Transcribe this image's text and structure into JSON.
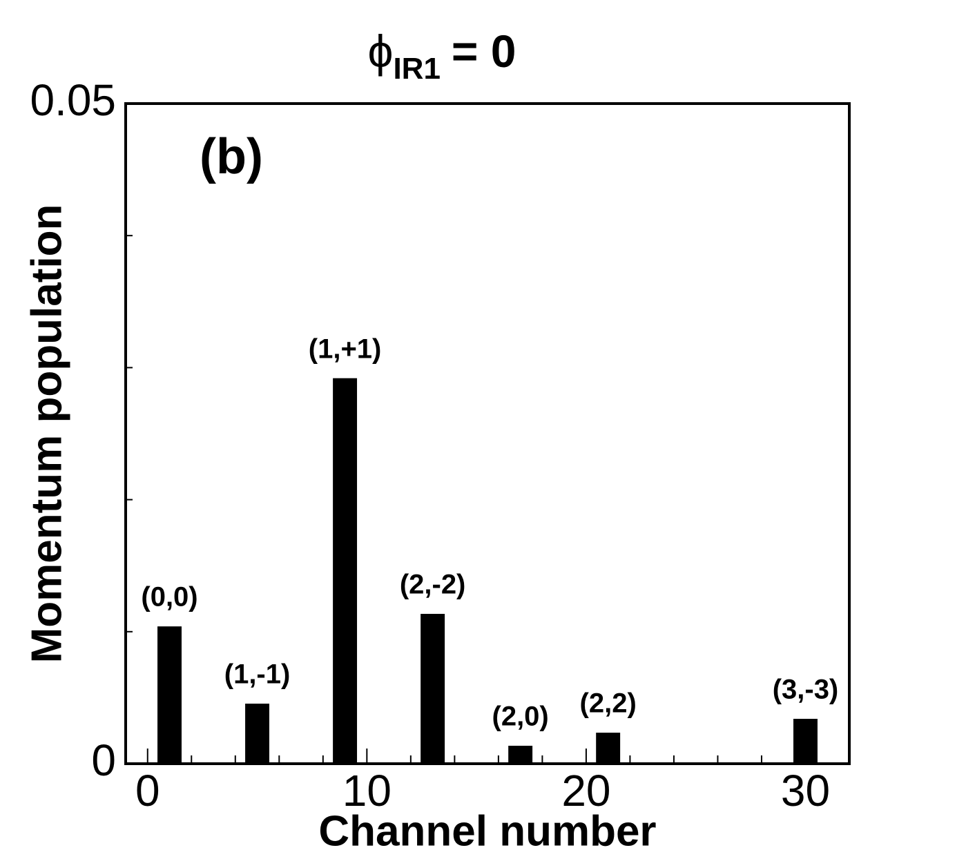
{
  "chart_data": {
    "type": "bar",
    "title": {
      "symbol": "ϕ",
      "subscript": "IR1",
      "text": "= 0"
    },
    "panel_label": "(b)",
    "x_label": "Channel number",
    "y_label": "Momentum population",
    "x": [
      1,
      5,
      9,
      13,
      17,
      21,
      30
    ],
    "values": [
      0.0104,
      0.00455,
      0.0292,
      0.01135,
      0.00136,
      0.00235,
      0.0034
    ],
    "bar_labels": [
      "(0,0)",
      "(1,-1)",
      "(1,+1)",
      "(2,-2)",
      "(2,0)",
      "(2,2)",
      "(3,-3)"
    ],
    "bar_width": 1.1,
    "color": "#000000",
    "xlim": [
      -1,
      32
    ],
    "xticks": [
      0,
      10,
      20,
      30
    ],
    "xminor": [
      2,
      4,
      6,
      8,
      12,
      14,
      16,
      18,
      22,
      24,
      26,
      28,
      32
    ],
    "ylim": [
      0,
      0.05
    ],
    "yticks": [
      0,
      0.05
    ],
    "yminor": [
      0.01,
      0.02,
      0.03,
      0.04
    ]
  }
}
